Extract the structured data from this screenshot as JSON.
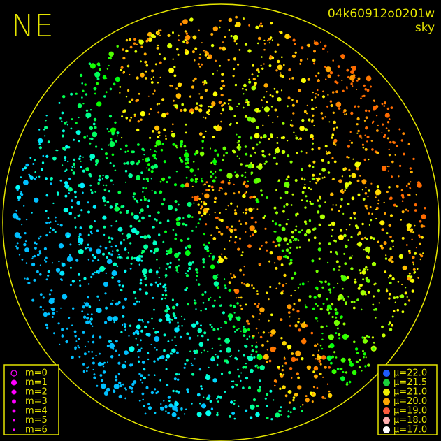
{
  "header": {
    "direction": "NE",
    "image_id": "04k60912o0201w",
    "label": "sky"
  },
  "legend_magnitude": {
    "color": "#ff00ff",
    "items": [
      "m=0",
      "m=1",
      "m=2",
      "m=3",
      "m=4",
      "m=5",
      "m=6"
    ]
  },
  "legend_brightness": {
    "items": [
      {
        "label": "μ=22.0",
        "color": "#1e5cff"
      },
      {
        "label": "μ=21.5",
        "color": "#19d03a"
      },
      {
        "label": "μ=21.0",
        "color": "#f0f000"
      },
      {
        "label": "μ=20.0",
        "color": "#ffa500"
      },
      {
        "label": "μ=19.0",
        "color": "#ff5a3c"
      },
      {
        "label": "μ=18.0",
        "color": "#ffb0b0"
      },
      {
        "label": "μ=17.0",
        "color": "#ffffff"
      }
    ]
  }
}
